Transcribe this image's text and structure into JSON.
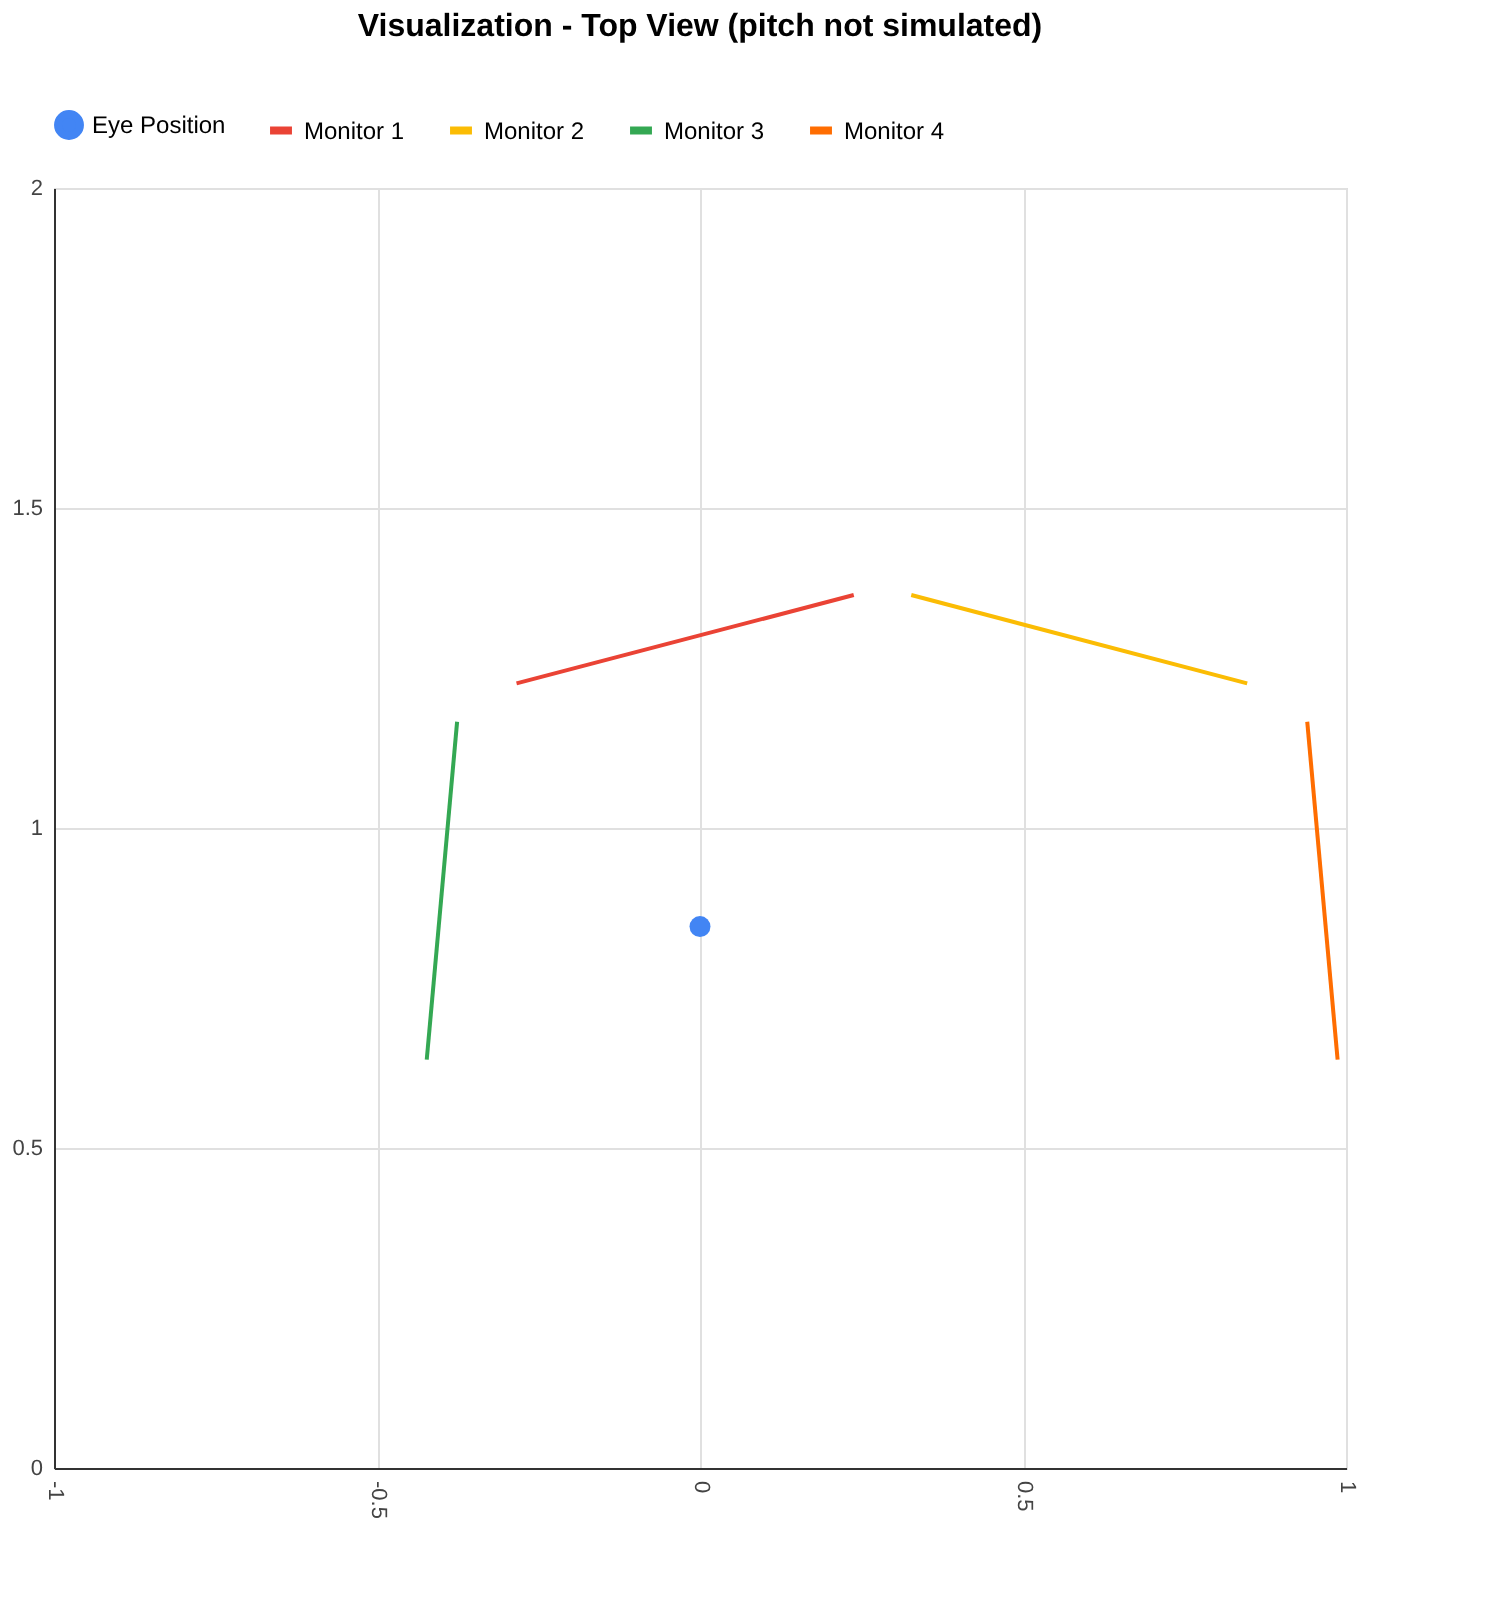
{
  "chart_data": {
    "type": "line",
    "title": "Visualization - Top View (pitch not simulated)",
    "xlim": [
      -1,
      1
    ],
    "xticks": [
      -1,
      -0.5,
      0,
      0.5,
      1
    ],
    "ylim": [
      0,
      2
    ],
    "yticks": [
      0,
      0.5,
      1,
      1.5,
      2
    ],
    "grid": true,
    "legend": "top",
    "series": [
      {
        "name": "Eye Position",
        "type": "scatter",
        "color": "#4285f4",
        "x": [
          0
        ],
        "values": [
          0.846
        ]
      },
      {
        "name": "Monitor 1",
        "color": "#ea4335",
        "x": [
          -0.284,
          0.238
        ],
        "values": [
          1.226,
          1.364
        ]
      },
      {
        "name": "Monitor 2",
        "color": "#fbbc04",
        "x": [
          0.327,
          0.847
        ],
        "values": [
          1.364,
          1.226
        ]
      },
      {
        "name": "Monitor 3",
        "color": "#34a853",
        "x": [
          -0.376,
          -0.423
        ],
        "values": [
          1.166,
          0.638
        ]
      },
      {
        "name": "Monitor 4",
        "color": "#ff6d01",
        "x": [
          0.94,
          0.987
        ],
        "values": [
          1.166,
          0.638
        ]
      }
    ]
  }
}
